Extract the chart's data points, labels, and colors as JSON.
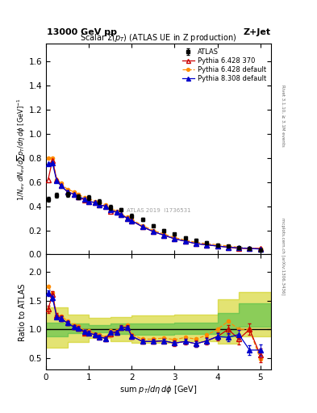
{
  "title_left": "13000 GeV pp",
  "title_right": "Z+Jet",
  "main_title": "Scalar Σ(p_{T}) (ATLAS UE in Z production)",
  "ylabel_main": "1/N_{ev} dN_{ev}/dsum p_{T}/dη dϕ  [GeV]^{-1}",
  "ylabel_ratio": "Ratio to ATLAS",
  "xlabel": "sum p_{T}/dη dϕ [GeV]",
  "right_label_top": "Rivet 3.1.10, ≥ 3.1M events",
  "right_label_bot": "mcplots.cern.ch [arXiv:1306.3436]",
  "watermark": "ATLAS 2019  I1736531",
  "atlas_x": [
    0.05,
    0.25,
    0.5,
    0.75,
    1.0,
    1.25,
    1.5,
    1.75,
    2.0,
    2.25,
    2.5,
    2.75,
    3.0,
    3.25,
    3.5,
    3.75,
    4.0,
    4.25,
    4.5,
    4.75,
    5.0
  ],
  "atlas_y": [
    0.46,
    0.49,
    0.5,
    0.48,
    0.47,
    0.44,
    0.39,
    0.37,
    0.32,
    0.29,
    0.24,
    0.2,
    0.17,
    0.14,
    0.12,
    0.1,
    0.08,
    0.07,
    0.06,
    0.05,
    0.04
  ],
  "atlas_yerr": [
    0.02,
    0.02,
    0.02,
    0.02,
    0.02,
    0.02,
    0.02,
    0.015,
    0.015,
    0.015,
    0.01,
    0.01,
    0.01,
    0.01,
    0.01,
    0.008,
    0.008,
    0.006,
    0.005,
    0.005,
    0.004
  ],
  "py6_370_x": [
    0.05,
    0.15,
    0.25,
    0.35,
    0.5,
    0.65,
    0.75,
    0.9,
    1.0,
    1.15,
    1.25,
    1.4,
    1.5,
    1.65,
    1.75,
    1.9,
    2.0,
    2.25,
    2.5,
    2.75,
    3.0,
    3.25,
    3.5,
    3.75,
    4.0,
    4.25,
    4.5,
    4.75,
    5.0
  ],
  "py6_370_y": [
    0.62,
    0.78,
    0.62,
    0.57,
    0.52,
    0.5,
    0.48,
    0.45,
    0.44,
    0.43,
    0.41,
    0.4,
    0.36,
    0.35,
    0.33,
    0.3,
    0.28,
    0.23,
    0.19,
    0.16,
    0.13,
    0.11,
    0.09,
    0.08,
    0.07,
    0.06,
    0.05,
    0.05,
    0.05
  ],
  "py6_def_x": [
    0.05,
    0.15,
    0.25,
    0.35,
    0.5,
    0.65,
    0.75,
    0.9,
    1.0,
    1.15,
    1.25,
    1.4,
    1.5,
    1.65,
    1.75,
    1.9,
    2.0,
    2.25,
    2.5,
    2.75,
    3.0,
    3.25,
    3.5,
    3.75,
    4.0,
    4.25,
    4.5,
    4.75,
    5.0
  ],
  "py6_def_y": [
    0.8,
    0.8,
    0.62,
    0.59,
    0.54,
    0.52,
    0.5,
    0.47,
    0.46,
    0.44,
    0.43,
    0.41,
    0.38,
    0.36,
    0.33,
    0.31,
    0.29,
    0.24,
    0.2,
    0.17,
    0.14,
    0.12,
    0.1,
    0.09,
    0.08,
    0.07,
    0.06,
    0.05,
    0.05
  ],
  "py8_def_x": [
    0.05,
    0.15,
    0.25,
    0.35,
    0.5,
    0.65,
    0.75,
    0.9,
    1.0,
    1.15,
    1.25,
    1.4,
    1.5,
    1.65,
    1.75,
    1.9,
    2.0,
    2.25,
    2.5,
    2.75,
    3.0,
    3.25,
    3.5,
    3.75,
    4.0,
    4.25,
    4.5,
    4.75,
    5.0
  ],
  "py8_def_y": [
    0.75,
    0.76,
    0.61,
    0.57,
    0.52,
    0.5,
    0.48,
    0.46,
    0.44,
    0.43,
    0.41,
    0.4,
    0.37,
    0.35,
    0.33,
    0.3,
    0.28,
    0.23,
    0.19,
    0.16,
    0.13,
    0.11,
    0.09,
    0.08,
    0.07,
    0.06,
    0.055,
    0.05,
    0.045
  ],
  "ratio_py6_370_x": [
    0.05,
    0.15,
    0.25,
    0.35,
    0.5,
    0.65,
    0.75,
    0.9,
    1.0,
    1.15,
    1.25,
    1.4,
    1.5,
    1.65,
    1.75,
    1.9,
    2.0,
    2.25,
    2.5,
    2.75,
    3.0,
    3.25,
    3.5,
    3.75,
    4.0,
    4.25,
    4.5,
    4.75,
    5.0
  ],
  "ratio_py6_370_y": [
    1.35,
    1.6,
    1.24,
    1.19,
    1.11,
    1.04,
    1.02,
    0.94,
    0.94,
    0.9,
    0.87,
    0.84,
    0.92,
    0.95,
    1.03,
    1.03,
    0.88,
    0.79,
    0.79,
    0.8,
    0.76,
    0.79,
    0.75,
    0.8,
    0.875,
    1.0,
    0.83,
    1.0,
    0.55
  ],
  "ratio_py6_370_yerr": [
    0.06,
    0.06,
    0.05,
    0.05,
    0.04,
    0.04,
    0.04,
    0.04,
    0.04,
    0.04,
    0.04,
    0.04,
    0.04,
    0.04,
    0.04,
    0.04,
    0.04,
    0.04,
    0.04,
    0.04,
    0.05,
    0.05,
    0.06,
    0.06,
    0.07,
    0.08,
    0.09,
    0.1,
    0.12
  ],
  "ratio_py6_def_x": [
    0.05,
    0.15,
    0.25,
    0.35,
    0.5,
    0.65,
    0.75,
    0.9,
    1.0,
    1.15,
    1.25,
    1.4,
    1.5,
    1.65,
    1.75,
    1.9,
    2.0,
    2.25,
    2.5,
    2.75,
    3.0,
    3.25,
    3.5,
    3.75,
    4.0,
    4.25,
    4.5,
    4.75,
    5.0
  ],
  "ratio_py6_def_y": [
    1.74,
    1.63,
    1.24,
    1.23,
    1.15,
    1.08,
    1.06,
    0.98,
    0.98,
    0.92,
    0.91,
    0.86,
    0.97,
    0.97,
    1.03,
    1.07,
    0.91,
    0.83,
    0.83,
    0.85,
    0.82,
    0.86,
    0.83,
    0.9,
    1.0,
    1.14,
    1.0,
    1.0,
    0.48
  ],
  "ratio_py8_def_x": [
    0.05,
    0.15,
    0.25,
    0.35,
    0.5,
    0.65,
    0.75,
    0.9,
    1.0,
    1.15,
    1.25,
    1.4,
    1.5,
    1.65,
    1.75,
    1.9,
    2.0,
    2.25,
    2.5,
    2.75,
    3.0,
    3.25,
    3.5,
    3.75,
    4.0,
    4.25,
    4.5,
    4.75,
    5.0
  ],
  "ratio_py8_def_y": [
    1.63,
    1.55,
    1.22,
    1.19,
    1.11,
    1.04,
    1.02,
    0.96,
    0.94,
    0.9,
    0.87,
    0.84,
    0.95,
    0.95,
    1.03,
    1.03,
    0.88,
    0.79,
    0.79,
    0.8,
    0.76,
    0.79,
    0.75,
    0.8,
    0.875,
    0.86,
    0.91,
    0.64,
    0.64
  ],
  "ratio_py8_def_yerr": [
    0.05,
    0.05,
    0.04,
    0.04,
    0.03,
    0.03,
    0.03,
    0.03,
    0.03,
    0.03,
    0.03,
    0.03,
    0.03,
    0.03,
    0.03,
    0.03,
    0.03,
    0.03,
    0.03,
    0.03,
    0.04,
    0.04,
    0.05,
    0.05,
    0.06,
    0.07,
    0.08,
    0.09,
    0.1
  ],
  "bx": [
    0.0,
    0.5,
    1.0,
    1.5,
    2.0,
    3.0,
    4.0,
    4.5,
    5.25
  ],
  "g_lo": [
    0.88,
    0.93,
    0.95,
    0.92,
    0.9,
    0.92,
    0.88,
    1.05,
    1.05
  ],
  "g_hi": [
    1.12,
    1.1,
    1.08,
    1.1,
    1.1,
    1.12,
    1.28,
    1.45,
    1.45
  ],
  "y_lo": [
    0.68,
    0.78,
    0.85,
    0.8,
    0.76,
    0.8,
    0.75,
    0.88,
    0.88
  ],
  "y_hi": [
    1.38,
    1.26,
    1.2,
    1.22,
    1.24,
    1.26,
    1.52,
    1.65,
    1.65
  ],
  "xlim": [
    0,
    5.25
  ],
  "ylim_main": [
    0,
    1.75
  ],
  "ylim_ratio": [
    0.3,
    2.3
  ],
  "yticks_main": [
    0.0,
    0.2,
    0.4,
    0.6,
    0.8,
    1.0,
    1.2,
    1.4,
    1.6
  ],
  "yticks_ratio": [
    0.5,
    1.0,
    1.5,
    2.0
  ],
  "xticks": [
    0,
    1,
    2,
    3,
    4,
    5
  ],
  "color_atlas": "#000000",
  "color_py6_370": "#cc0000",
  "color_py6_def": "#ff8c00",
  "color_py8_def": "#0000cc",
  "color_green": "#44bb44",
  "color_yellow": "#cccc00",
  "legend_labels": [
    "ATLAS",
    "Pythia 6.428 370",
    "Pythia 6.428 default",
    "Pythia 8.308 default"
  ]
}
